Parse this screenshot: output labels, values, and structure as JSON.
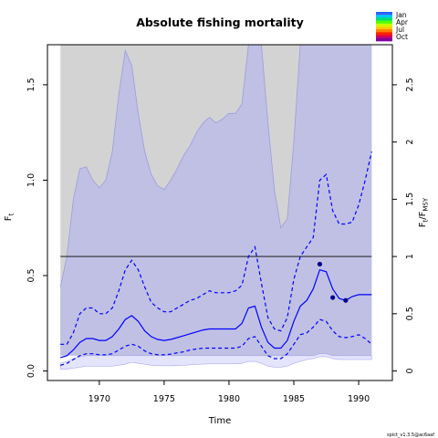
{
  "chart_data": {
    "type": "line",
    "title": "Absolute fishing mortality",
    "xlabel": "Time",
    "ylabel_left": "F",
    "ylabel_left_sub": "t",
    "ylabel_right_main": "F",
    "ylabel_right_sub1": "t",
    "ylabel_right_sep": "/F",
    "ylabel_right_sub2": "MSY",
    "xlim": [
      1966.0,
      1992.6
    ],
    "ylim": [
      -0.05,
      1.71
    ],
    "x_ticks": [
      1970,
      1975,
      1980,
      1985,
      1990
    ],
    "y_ticks_left": [
      0.0,
      0.5,
      1.0,
      1.5
    ],
    "y_ticks_right": [
      0,
      0.5,
      1,
      1.5,
      2,
      2.5
    ],
    "right_axis_scale": 0.6,
    "fmsy_line": 0.6,
    "fmsy_band": {
      "x": [
        1967.0,
        1967.5,
        1968.0,
        1968.5,
        1969.0,
        1969.5,
        1970.0,
        1970.5,
        1971.0,
        1971.5,
        1972.0,
        1972.5,
        1973.0,
        1973.5,
        1974.0,
        1974.5,
        1975.0,
        1975.5,
        1976.0,
        1976.5,
        1977.0,
        1977.5,
        1978.0,
        1978.5,
        1979.0,
        1979.5,
        1980.0,
        1980.5,
        1981.0,
        1981.5,
        1982.0,
        1982.5,
        1983.0,
        1983.5,
        1984.0,
        1984.5,
        1985.0,
        1985.5,
        1986.0,
        1986.5,
        1987.0,
        1987.5,
        1988.0,
        1988.5,
        1989.0,
        1989.5,
        1990.0,
        1990.5,
        1991.0
      ],
      "lower": [
        0.08,
        0.08,
        0.08,
        0.08,
        0.08,
        0.08,
        0.08,
        0.08,
        0.08,
        0.08,
        0.08,
        0.08,
        0.08,
        0.08,
        0.08,
        0.08,
        0.08,
        0.08,
        0.08,
        0.08,
        0.08,
        0.08,
        0.08,
        0.08,
        0.08,
        0.08,
        0.08,
        0.08,
        0.08,
        0.08,
        0.08,
        0.08,
        0.08,
        0.08,
        0.08,
        0.08,
        0.08,
        0.08,
        0.08,
        0.08,
        0.08,
        0.08,
        0.08,
        0.08,
        0.08,
        0.08,
        0.08,
        0.08,
        0.08
      ],
      "upper": [
        0.44,
        0.6,
        0.9,
        1.06,
        1.07,
        1.0,
        0.96,
        1.0,
        1.15,
        1.45,
        1.68,
        1.6,
        1.35,
        1.15,
        1.03,
        0.97,
        0.95,
        1.0,
        1.06,
        1.13,
        1.18,
        1.25,
        1.3,
        1.33,
        1.3,
        1.32,
        1.35,
        1.35,
        1.4,
        1.71,
        1.71,
        1.71,
        1.3,
        0.95,
        0.75,
        0.8,
        1.2,
        1.71,
        1.71,
        1.71,
        1.71,
        1.71,
        1.71,
        1.71,
        1.71,
        1.71,
        1.71,
        1.71,
        1.71
      ]
    },
    "series": [
      {
        "x": [
          1967.0,
          1967.5,
          1968.0,
          1968.5,
          1969.0,
          1969.5,
          1970.0,
          1970.5,
          1971.0,
          1971.5,
          1972.0,
          1972.5,
          1973.0,
          1973.5,
          1974.0,
          1974.5,
          1975.0,
          1975.5,
          1976.0,
          1976.5,
          1977.0,
          1977.5,
          1978.0,
          1978.5,
          1979.0,
          1979.5,
          1980.0,
          1980.5,
          1981.0,
          1981.5,
          1982.0,
          1982.5,
          1983.0,
          1983.5,
          1984.0,
          1984.5,
          1985.0,
          1985.5,
          1986.0,
          1986.5,
          1987.0,
          1987.5,
          1988.0,
          1988.5,
          1989.0,
          1989.5,
          1990.0,
          1990.5,
          1991.0
        ],
        "y": [
          0.07,
          0.08,
          0.11,
          0.15,
          0.17,
          0.17,
          0.16,
          0.16,
          0.18,
          0.22,
          0.27,
          0.29,
          0.26,
          0.21,
          0.18,
          0.165,
          0.16,
          0.165,
          0.175,
          0.185,
          0.195,
          0.205,
          0.215,
          0.22,
          0.22,
          0.22,
          0.22,
          0.22,
          0.25,
          0.33,
          0.34,
          0.23,
          0.15,
          0.12,
          0.12,
          0.16,
          0.26,
          0.34,
          0.37,
          0.43,
          0.53,
          0.52,
          0.43,
          0.38,
          0.37,
          0.39,
          0.4,
          0.4,
          0.4
        ],
        "style": "solid",
        "color": "#0000ff"
      },
      {
        "x": [
          1967.0,
          1967.5,
          1968.0,
          1968.5,
          1969.0,
          1969.5,
          1970.0,
          1970.5,
          1971.0,
          1971.5,
          1972.0,
          1972.5,
          1973.0,
          1973.5,
          1974.0,
          1974.5,
          1975.0,
          1975.5,
          1976.0,
          1976.5,
          1977.0,
          1977.5,
          1978.0,
          1978.5,
          1979.0,
          1979.5,
          1980.0,
          1980.5,
          1981.0,
          1981.5,
          1982.0,
          1982.5,
          1983.0,
          1983.5,
          1984.0,
          1984.5,
          1985.0,
          1985.5,
          1986.0,
          1986.5,
          1987.0,
          1987.5,
          1988.0,
          1988.5,
          1989.0,
          1989.5,
          1990.0,
          1990.5,
          1991.0
        ],
        "y": [
          0.14,
          0.14,
          0.2,
          0.3,
          0.33,
          0.33,
          0.3,
          0.3,
          0.33,
          0.42,
          0.53,
          0.58,
          0.53,
          0.44,
          0.36,
          0.33,
          0.31,
          0.31,
          0.33,
          0.35,
          0.37,
          0.38,
          0.4,
          0.42,
          0.41,
          0.41,
          0.41,
          0.42,
          0.45,
          0.6,
          0.65,
          0.46,
          0.28,
          0.22,
          0.21,
          0.28,
          0.48,
          0.6,
          0.65,
          0.7,
          1.0,
          1.03,
          0.84,
          0.77,
          0.77,
          0.78,
          0.87,
          1.0,
          1.15
        ],
        "style": "dashed",
        "color": "#0000ff"
      },
      {
        "x": [
          1967.0,
          1967.5,
          1968.0,
          1968.5,
          1969.0,
          1969.5,
          1970.0,
          1970.5,
          1971.0,
          1971.5,
          1972.0,
          1972.5,
          1973.0,
          1973.5,
          1974.0,
          1974.5,
          1975.0,
          1975.5,
          1976.0,
          1976.5,
          1977.0,
          1977.5,
          1978.0,
          1978.5,
          1979.0,
          1979.5,
          1980.0,
          1980.5,
          1981.0,
          1981.5,
          1982.0,
          1982.5,
          1983.0,
          1983.5,
          1984.0,
          1984.5,
          1985.0,
          1985.5,
          1986.0,
          1986.5,
          1987.0,
          1987.5,
          1988.0,
          1988.5,
          1989.0,
          1989.5,
          1990.0,
          1990.5,
          1991.0
        ],
        "y": [
          0.03,
          0.04,
          0.06,
          0.08,
          0.09,
          0.09,
          0.085,
          0.085,
          0.09,
          0.11,
          0.13,
          0.14,
          0.13,
          0.105,
          0.09,
          0.085,
          0.085,
          0.088,
          0.095,
          0.1,
          0.11,
          0.115,
          0.12,
          0.12,
          0.12,
          0.12,
          0.12,
          0.12,
          0.13,
          0.17,
          0.18,
          0.13,
          0.08,
          0.065,
          0.065,
          0.09,
          0.14,
          0.19,
          0.2,
          0.23,
          0.27,
          0.26,
          0.21,
          0.18,
          0.175,
          0.18,
          0.19,
          0.17,
          0.14
        ],
        "style": "dashed",
        "color": "#0000ff"
      }
    ],
    "lower_band": {
      "x": [
        1967.0,
        1967.5,
        1968.0,
        1968.5,
        1969.0,
        1969.5,
        1970.0,
        1970.5,
        1971.0,
        1971.5,
        1972.0,
        1972.5,
        1973.0,
        1973.5,
        1974.0,
        1974.5,
        1975.0,
        1975.5,
        1976.0,
        1976.5,
        1977.0,
        1977.5,
        1978.0,
        1978.5,
        1979.0,
        1979.5,
        1980.0,
        1980.5,
        1981.0,
        1981.5,
        1982.0,
        1982.5,
        1983.0,
        1983.5,
        1984.0,
        1984.5,
        1985.0,
        1985.5,
        1986.0,
        1986.5,
        1987.0,
        1987.5,
        1988.0,
        1988.5,
        1989.0,
        1989.5,
        1990.0,
        1990.5,
        1991.0
      ],
      "lower": [
        0.01,
        0.01,
        0.015,
        0.02,
        0.025,
        0.025,
        0.025,
        0.025,
        0.025,
        0.03,
        0.035,
        0.045,
        0.04,
        0.035,
        0.03,
        0.028,
        0.027,
        0.027,
        0.028,
        0.03,
        0.032,
        0.034,
        0.036,
        0.037,
        0.037,
        0.037,
        0.037,
        0.037,
        0.04,
        0.05,
        0.05,
        0.04,
        0.025,
        0.02,
        0.02,
        0.025,
        0.04,
        0.05,
        0.06,
        0.065,
        0.075,
        0.075,
        0.065,
        0.06,
        0.06,
        0.06,
        0.06,
        0.06,
        0.06
      ],
      "upper": [
        0.04,
        0.05,
        0.065,
        0.075,
        0.08,
        0.08,
        0.08,
        0.08,
        0.08,
        0.08,
        0.08,
        0.08,
        0.08,
        0.08,
        0.08,
        0.08,
        0.08,
        0.08,
        0.08,
        0.08,
        0.08,
        0.08,
        0.08,
        0.08,
        0.08,
        0.08,
        0.08,
        0.08,
        0.08,
        0.08,
        0.08,
        0.08,
        0.08,
        0.08,
        0.08,
        0.08,
        0.08,
        0.08,
        0.08,
        0.08,
        0.09,
        0.09,
        0.08,
        0.08,
        0.08,
        0.08,
        0.08,
        0.08,
        0.08
      ]
    },
    "points": [
      {
        "x": 1987.0,
        "y": 0.56
      },
      {
        "x": 1988.0,
        "y": 0.385
      },
      {
        "x": 1989.0,
        "y": 0.37
      }
    ],
    "colors": {
      "band_fill": "#c0c0e4",
      "band_edge": "#9b9be0",
      "grey_fill": "#d3d3d3",
      "lower_band_fill": "#e4e4ff",
      "line": "#0000ff",
      "point": "#00008b",
      "fmsy": "#000000"
    },
    "legend": {
      "position": "top-right",
      "labels": [
        "Jan",
        "Apr",
        "Jul",
        "Oct"
      ],
      "colors": [
        "#3060ff",
        "#00c8ff",
        "#00e070",
        "#50ff00",
        "#c8ff00",
        "#ffd000",
        "#ff8000",
        "#ff2000",
        "#d00060",
        "#8000a0"
      ]
    },
    "footer_text": "spict_v1.3.5@ac6aaf"
  }
}
